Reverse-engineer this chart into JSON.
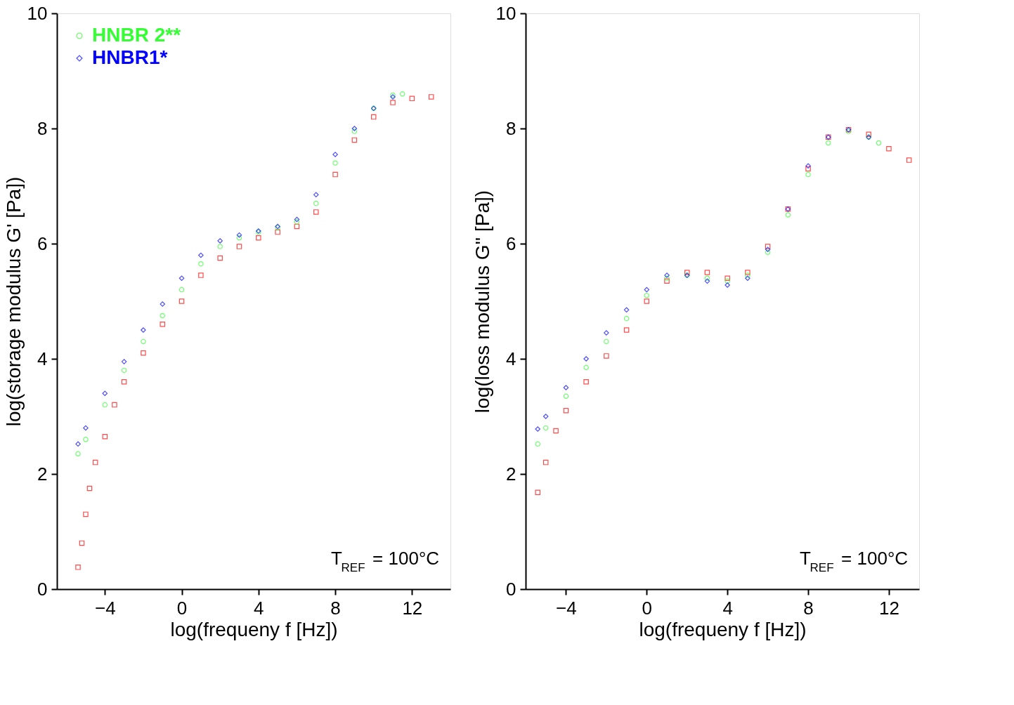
{
  "chart_data": [
    {
      "type": "scatter",
      "xlabel": "log(frequeny f [Hz])",
      "ylabel": "log(storage modulus G' [Pa])",
      "xlim": [
        -6.5,
        14
      ],
      "xticks": [
        -4,
        0,
        4,
        8,
        12
      ],
      "ylim": [
        0,
        10
      ],
      "yticks": [
        0,
        2,
        4,
        6,
        8,
        10
      ],
      "grid": false,
      "legend": "top left",
      "annotations": [
        "T$_{REF}$ = 100°C"
      ],
      "series": [
        {
          "color": "#ff0000",
          "marker": "square",
          "x": [
            -5.4,
            -5.2,
            -5,
            -4.8,
            -4.5,
            -4,
            -3.5,
            -3,
            -2,
            -1,
            0,
            1,
            2,
            3,
            4,
            5,
            6,
            7,
            8,
            9,
            10,
            11,
            12,
            13
          ],
          "values": [
            0.38,
            0.8,
            1.3,
            1.75,
            2.2,
            2.65,
            3.2,
            3.6,
            4.1,
            4.6,
            5.0,
            5.45,
            5.75,
            5.95,
            6.1,
            6.2,
            6.3,
            6.55,
            7.2,
            7.8,
            8.2,
            8.45,
            8.52,
            8.55
          ]
        },
        {
          "name": "HNBR 2**",
          "color": "#33ff33",
          "marker": "circle",
          "x": [
            -5.4,
            -5,
            -4,
            -3,
            -2,
            -1,
            0,
            1,
            2,
            3,
            4,
            5,
            6,
            7,
            8,
            9,
            10,
            11,
            11.5
          ],
          "values": [
            2.35,
            2.6,
            3.2,
            3.8,
            4.3,
            4.75,
            5.2,
            5.65,
            5.95,
            6.1,
            6.2,
            6.28,
            6.38,
            6.7,
            7.4,
            7.95,
            8.35,
            8.58,
            8.6
          ]
        },
        {
          "name": "HNBR1*",
          "color": "#0000ff",
          "marker": "diamond",
          "x": [
            -5.4,
            -5,
            -4,
            -3,
            -2,
            -1,
            0,
            1,
            2,
            3,
            4,
            5,
            6,
            7,
            8,
            9,
            10,
            11
          ],
          "values": [
            2.52,
            2.8,
            3.4,
            3.95,
            4.5,
            4.95,
            5.4,
            5.8,
            6.05,
            6.15,
            6.22,
            6.3,
            6.42,
            6.85,
            7.55,
            8.0,
            8.35,
            8.55
          ]
        }
      ]
    },
    {
      "type": "scatter",
      "xlabel": "log(frequeny f [Hz])",
      "ylabel": "log(loss modulus G'' [Pa])",
      "xlim": [
        -6,
        13.5
      ],
      "xticks": [
        -4,
        0,
        4,
        8,
        12
      ],
      "ylim": [
        0,
        10
      ],
      "yticks": [
        0,
        2,
        4,
        6,
        8,
        10
      ],
      "grid": false,
      "legend": "top left",
      "annotations": [
        "T$_{REF}$ = 100°C"
      ],
      "series": [
        {
          "color": "#ff0000",
          "marker": "square",
          "x": [
            -5.4,
            -5,
            -4.5,
            -4,
            -3,
            -2,
            -1,
            0,
            1,
            2,
            3,
            4,
            5,
            6,
            7,
            8,
            9,
            10,
            11,
            12,
            13
          ],
          "values": [
            1.68,
            2.2,
            2.75,
            3.1,
            3.6,
            4.05,
            4.5,
            5.0,
            5.35,
            5.5,
            5.5,
            5.4,
            5.5,
            5.95,
            6.6,
            7.3,
            7.85,
            7.98,
            7.9,
            7.65,
            7.45
          ]
        },
        {
          "name": "HNBR 2**",
          "color": "#33ff33",
          "marker": "circle",
          "x": [
            -5.4,
            -5,
            -4,
            -3,
            -2,
            -1,
            0,
            1,
            2,
            3,
            4,
            5,
            6,
            7,
            8,
            9,
            10,
            11,
            11.5
          ],
          "values": [
            2.52,
            2.8,
            3.35,
            3.85,
            4.3,
            4.7,
            5.1,
            5.4,
            5.45,
            5.4,
            5.35,
            5.45,
            5.85,
            6.5,
            7.2,
            7.75,
            7.95,
            7.85,
            7.75
          ]
        },
        {
          "name": "HNBR1*",
          "color": "#0000ff",
          "marker": "diamond",
          "x": [
            -5.4,
            -5,
            -4,
            -3,
            -2,
            -1,
            0,
            1,
            2,
            3,
            4,
            5,
            6,
            7,
            8,
            9,
            10,
            11
          ],
          "values": [
            2.78,
            3.0,
            3.5,
            4.0,
            4.45,
            4.85,
            5.2,
            5.45,
            5.45,
            5.35,
            5.28,
            5.4,
            5.9,
            6.6,
            7.35,
            7.85,
            7.98,
            7.85
          ]
        }
      ]
    }
  ]
}
